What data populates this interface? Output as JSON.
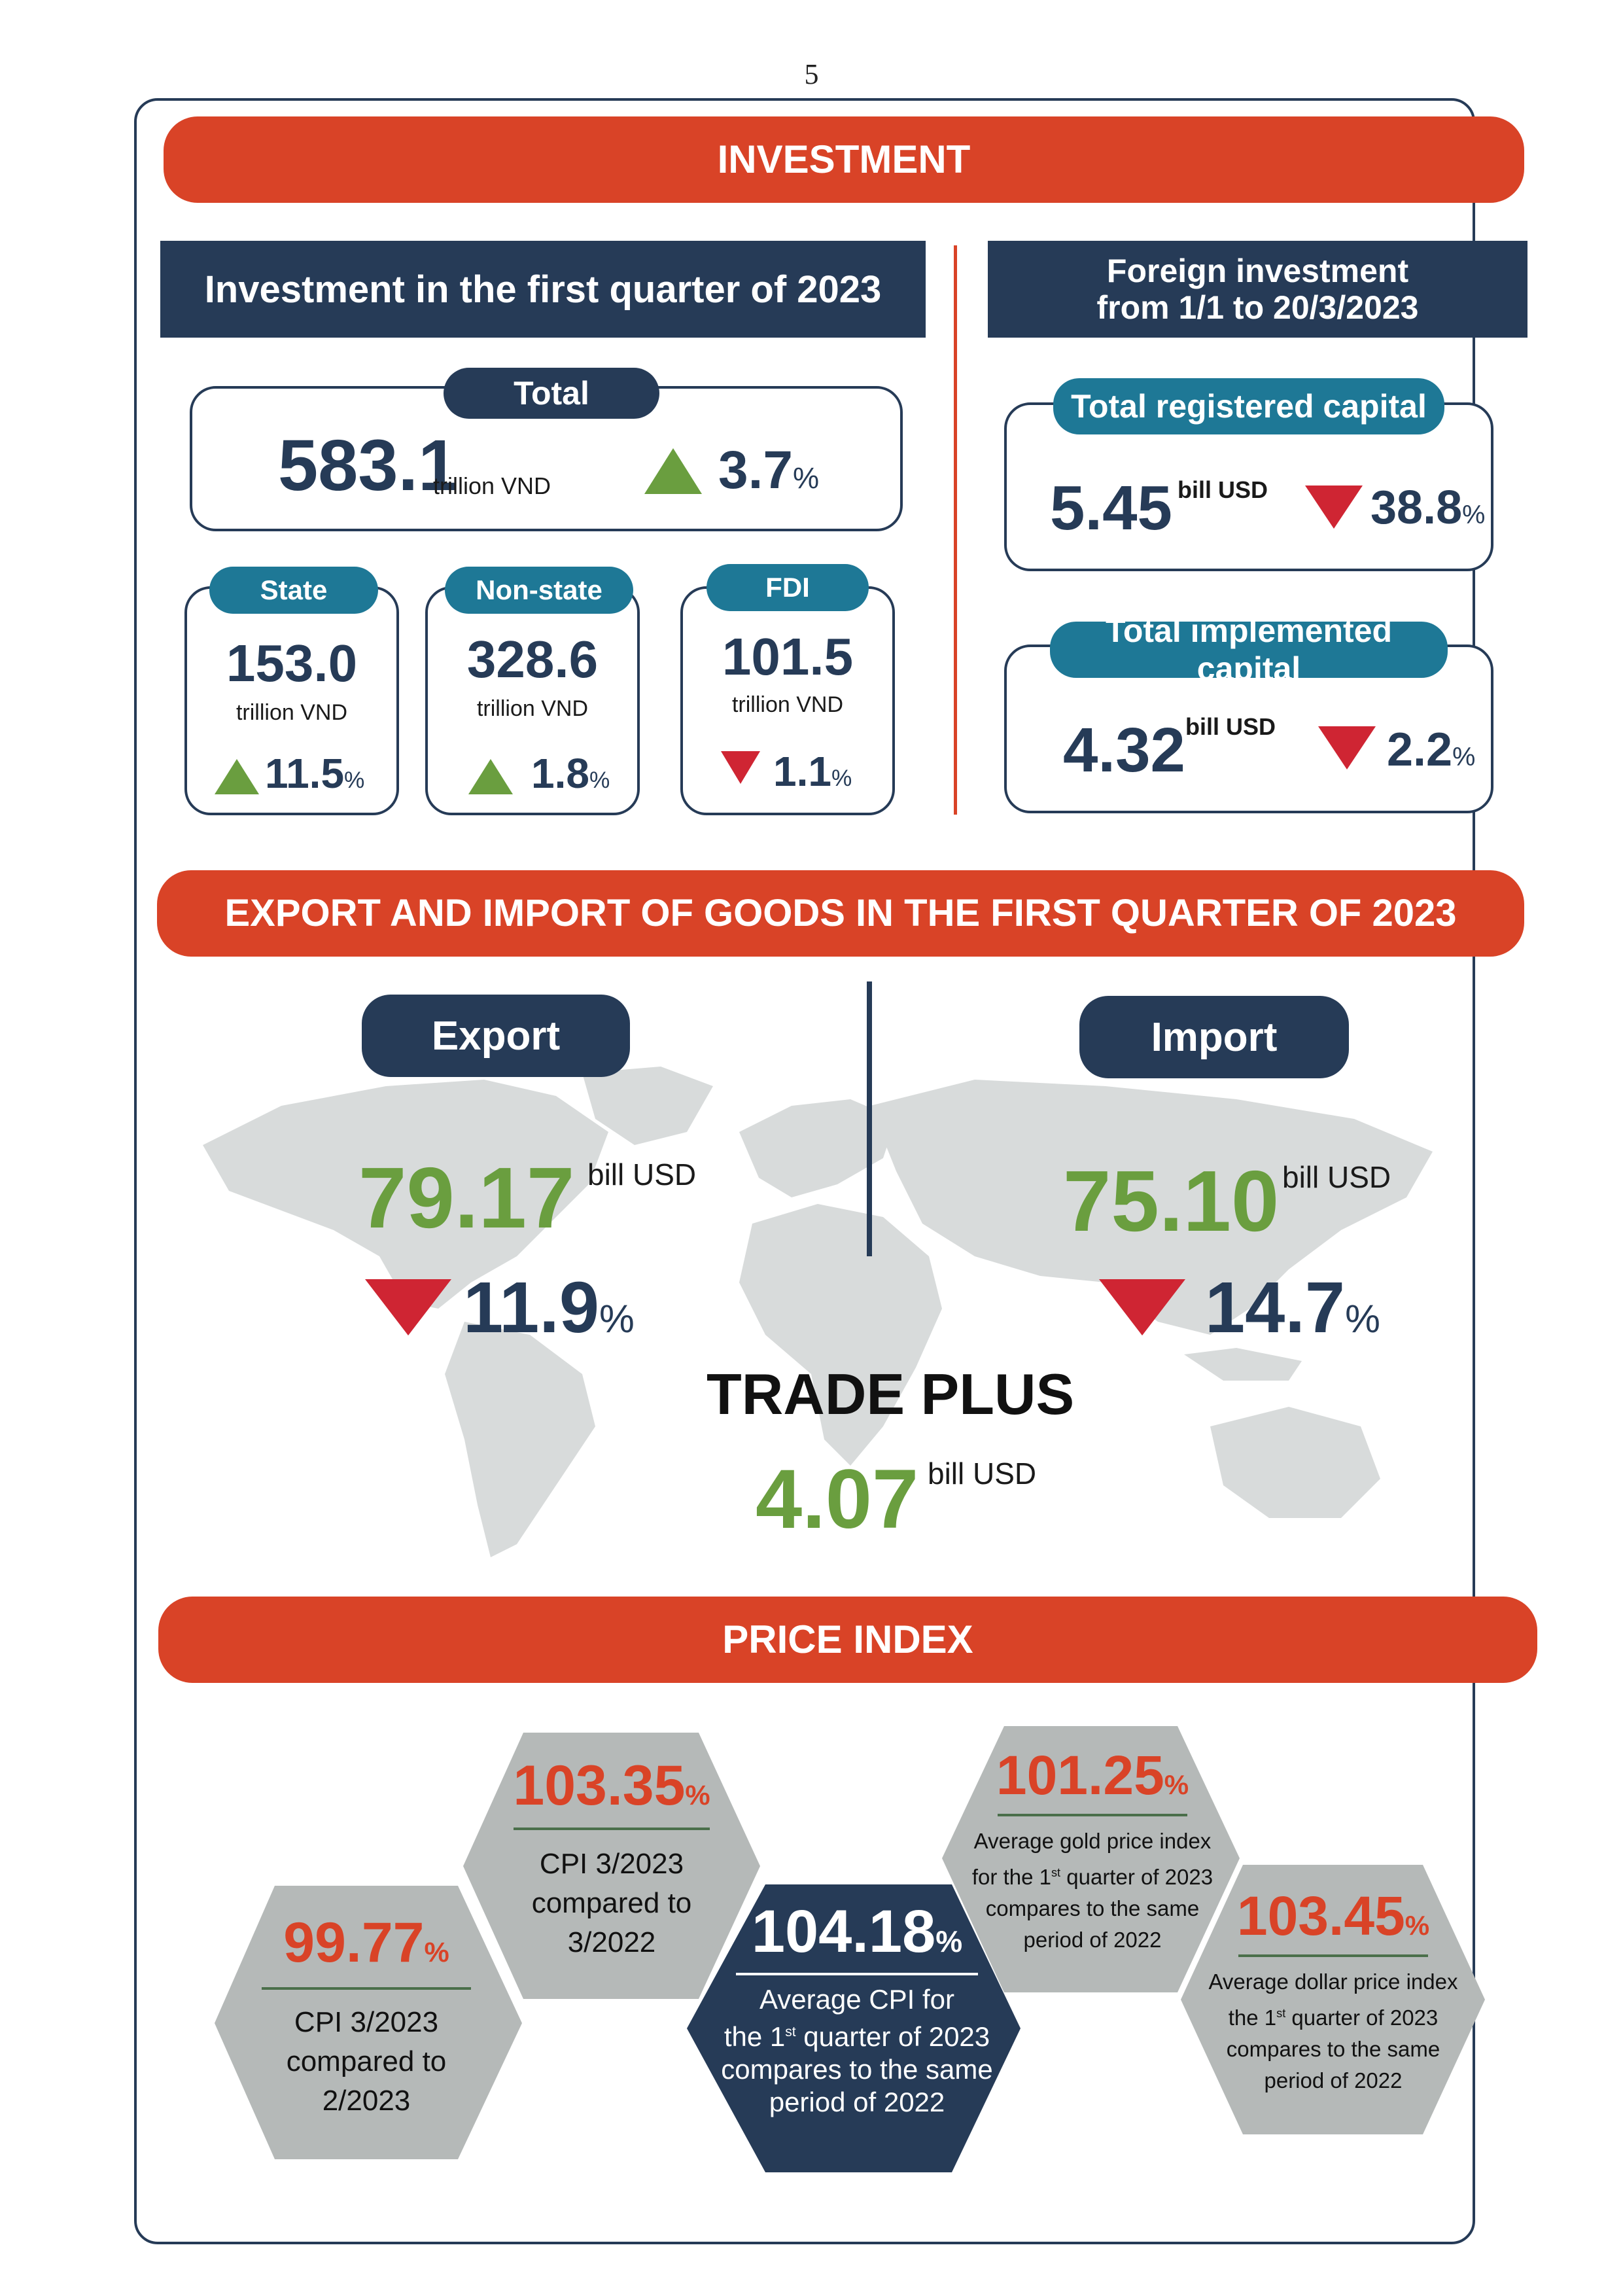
{
  "page_number": "5",
  "investment": {
    "banner": "INVESTMENT",
    "quarter_title": "Investment  in the first quarter of 2023",
    "total": {
      "label": "Total",
      "value": "583.1",
      "unit": "trillion VND",
      "change": "3.7",
      "pct": "%",
      "direction": "up"
    },
    "state": {
      "label": "State",
      "value": "153.0",
      "unit": "trillion VND",
      "change": "11.5",
      "pct": "%",
      "direction": "up"
    },
    "non_state": {
      "label": "Non-state",
      "value": "328.6",
      "unit": "trillion VND",
      "change": "1.8",
      "pct": "%",
      "direction": "up"
    },
    "fdi": {
      "label": "FDI",
      "value": "101.5",
      "unit": "trillion VND",
      "change": "1.1",
      "pct": "%",
      "direction": "down"
    },
    "foreign_title_line1": "Foreign investment",
    "foreign_title_line2": "from 1/1 to 20/3/2023",
    "registered": {
      "label": "Total registered capital",
      "value": "5.45",
      "unit": "bill USD",
      "change": "38.8",
      "pct": "%",
      "direction": "down"
    },
    "implemented": {
      "label": "Total implemented capital",
      "value": "4.32",
      "unit": "bill USD",
      "change": "2.2",
      "pct": "%",
      "direction": "down"
    }
  },
  "trade": {
    "banner": "EXPORT AND IMPORT OF GOODS IN THE FIRST QUARTER OF 2023",
    "export": {
      "label": "Export",
      "value": "79.17",
      "unit": "bill USD",
      "change": "11.9",
      "pct": "%",
      "direction": "down"
    },
    "import": {
      "label": "Import",
      "value": "75.10",
      "unit": "bill USD",
      "change": "14.7",
      "pct": "%",
      "direction": "down"
    },
    "plus_label": "TRADE PLUS",
    "plus_value": "4.07",
    "plus_unit": "bill USD"
  },
  "price": {
    "banner": "PRICE INDEX",
    "cpi_month": {
      "value": "99.77",
      "pct": "%",
      "line1": "CPI 3/2023",
      "line2": "compared to",
      "line3": "2/2023"
    },
    "cpi_year": {
      "value": "103.35",
      "pct": "%",
      "line1": "CPI 3/2023",
      "line2": "compared to",
      "line3": "3/2022"
    },
    "cpi_avg": {
      "value": "104.18",
      "pct": "%",
      "line1": "Average CPI for",
      "line2a": "the 1",
      "sup": "st",
      "line2b": " quarter of 2023",
      "line3": "compares to the same",
      "line4": "period of 2022"
    },
    "gold": {
      "value": "101.25",
      "pct": "%",
      "line1": "Average gold price index",
      "line2a": "for the 1",
      "sup": "st",
      "line2b": " quarter of 2023",
      "line3": "compares to the same",
      "line4": "period of 2022"
    },
    "dollar": {
      "value": "103.45",
      "pct": "%",
      "line1": "Average dollar price index",
      "line2a": "the 1",
      "sup": "st",
      "line2b": " quarter of 2023",
      "line3": "compares to the same",
      "line4": "period of 2022"
    }
  },
  "colors": {
    "navy": "#263b57",
    "red": "#d94327",
    "teal": "#1e7896",
    "green": "#6a9e3f",
    "down_red": "#cf2533",
    "hex_gray": "#b5b9b8",
    "map_gray": "#d8dbdb"
  }
}
